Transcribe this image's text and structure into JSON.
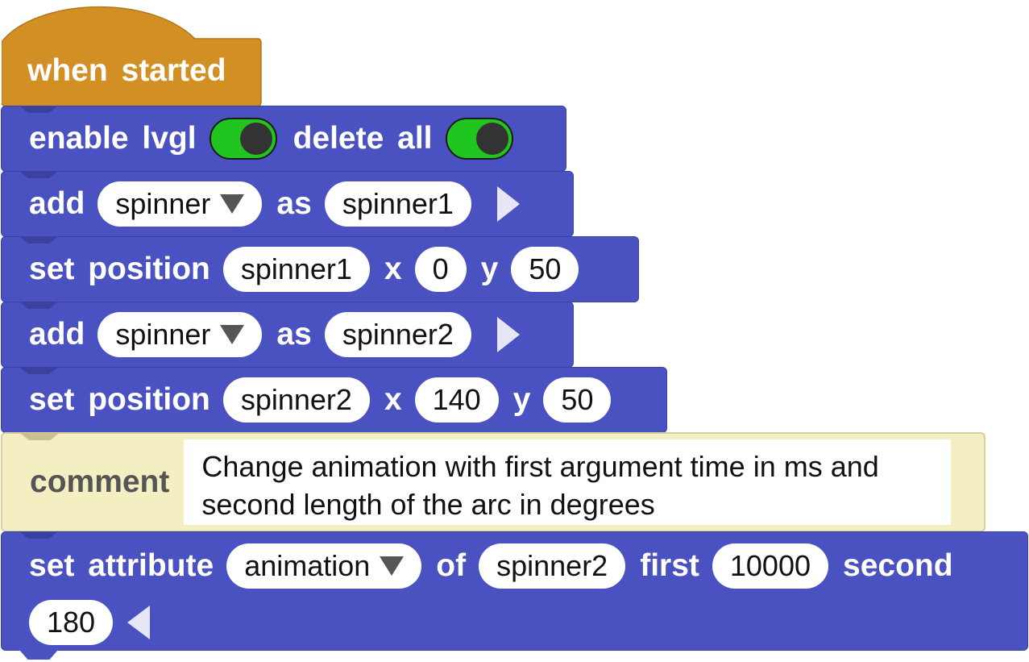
{
  "hat": {
    "label": "when started",
    "color": "#d18f24"
  },
  "blocks": {
    "enable": {
      "kw1": "enable lvgl",
      "kw2": "delete all",
      "toggle1": "on",
      "toggle2": "on"
    },
    "add1": {
      "kw1": "add",
      "widget": "spinner",
      "kw2": "as",
      "name": "spinner1"
    },
    "pos1": {
      "kw1": "set position",
      "target": "spinner1",
      "x_label": "x",
      "x": "0",
      "y_label": "y",
      "y": "50"
    },
    "add2": {
      "kw1": "add",
      "widget": "spinner",
      "kw2": "as",
      "name": "spinner2"
    },
    "pos2": {
      "kw1": "set position",
      "target": "spinner2",
      "x_label": "x",
      "x": "140",
      "y_label": "y",
      "y": "50"
    },
    "comment": {
      "kw": "comment",
      "text": "Change animation with first argument time in ms and second length of the arc in degrees"
    },
    "attr": {
      "kw1": "set attribute",
      "attribute": "animation",
      "kw2": "of",
      "target": "spinner2",
      "kw3": "first",
      "first": "10000",
      "kw4": "second",
      "second": "180"
    }
  },
  "colors": {
    "block_blue": "#4a52c2",
    "hat_orange": "#d18f24",
    "comment_cream": "#f3efc2",
    "toggle_green": "#21c51f"
  }
}
